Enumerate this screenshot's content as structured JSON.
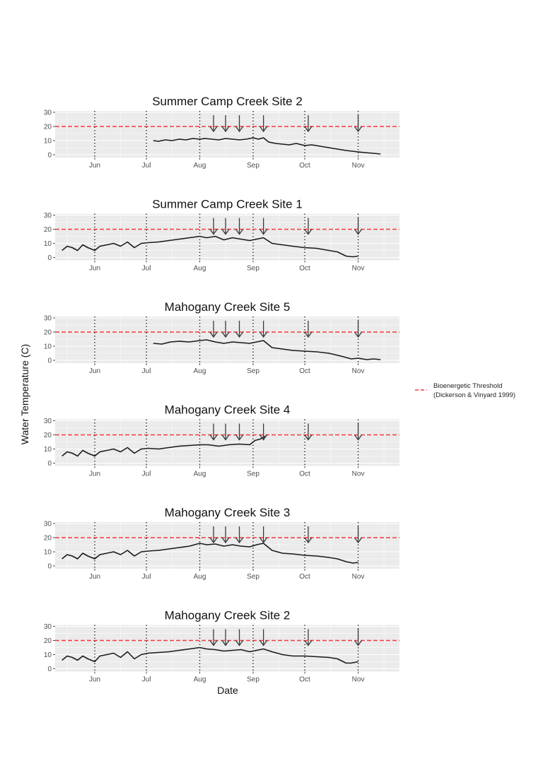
{
  "ylabel": "Water Temperature (C)",
  "xlabel": "Date",
  "legend": {
    "label_line1": "Bioenergetic Threshold",
    "label_line2": "(Dickerson & Vinyard 1999)",
    "color": "#f8393e"
  },
  "colors": {
    "panel_bg": "#ebebeb",
    "grid": "#ffffff",
    "line": "#1a1a1a",
    "threshold": "#f8393e",
    "arrow": "#3a3a3a",
    "tick": "#4d4d4d"
  },
  "x_ticks": [
    "Jun",
    "Jul",
    "Aug",
    "Sep",
    "Oct",
    "Nov"
  ],
  "y_ticks": [
    "0",
    "10",
    "20",
    "30"
  ],
  "chart_data": [
    {
      "type": "line",
      "title": "Summer Camp Creek Site 2",
      "xlim": [
        "2016-05-09",
        "2016-11-25"
      ],
      "ylim": [
        -2,
        31
      ],
      "threshold": 20,
      "vlines": [
        "2016-06-01",
        "2016-07-01",
        "2016-08-01",
        "2016-09-01",
        "2016-10-01",
        "2016-11-01"
      ],
      "arrows": [
        "2016-08-09",
        "2016-08-16",
        "2016-08-24",
        "2016-09-07",
        "2016-10-03",
        "2016-11-01"
      ],
      "series": [
        {
          "x": [
            "2016-07-05",
            "2016-07-08",
            "2016-07-12",
            "2016-07-16",
            "2016-07-20",
            "2016-07-24",
            "2016-07-28",
            "2016-08-01",
            "2016-08-04",
            "2016-08-08",
            "2016-08-12",
            "2016-08-16",
            "2016-08-20",
            "2016-08-24",
            "2016-08-28",
            "2016-09-01",
            "2016-09-04",
            "2016-09-07",
            "2016-09-10",
            "2016-09-14",
            "2016-09-18",
            "2016-09-22",
            "2016-09-26",
            "2016-10-01",
            "2016-10-05",
            "2016-10-10",
            "2016-10-15",
            "2016-10-20",
            "2016-10-25",
            "2016-11-01",
            "2016-11-05",
            "2016-11-10",
            "2016-11-14"
          ],
          "y": [
            10,
            9.5,
            10.5,
            10,
            11,
            10.5,
            11.5,
            11,
            11.5,
            11,
            10.5,
            11.5,
            11,
            10.5,
            11,
            12,
            11,
            12,
            9,
            8,
            7.5,
            7,
            8,
            6.5,
            7,
            6,
            5,
            4,
            3,
            2,
            1.5,
            1,
            0.5
          ]
        }
      ]
    },
    {
      "type": "line",
      "title": "Summer Camp Creek Site 1",
      "xlim": [
        "2016-05-09",
        "2016-11-25"
      ],
      "ylim": [
        -2,
        31
      ],
      "threshold": 20,
      "vlines": [
        "2016-06-01",
        "2016-07-01",
        "2016-08-01",
        "2016-09-01",
        "2016-10-01",
        "2016-11-01"
      ],
      "arrows": [
        "2016-08-09",
        "2016-08-16",
        "2016-08-24",
        "2016-09-07",
        "2016-10-03",
        "2016-11-01"
      ],
      "series": [
        {
          "x": [
            "2016-05-13",
            "2016-05-16",
            "2016-05-19",
            "2016-05-22",
            "2016-05-25",
            "2016-05-28",
            "2016-06-01",
            "2016-06-04",
            "2016-06-08",
            "2016-06-12",
            "2016-06-16",
            "2016-06-20",
            "2016-06-24",
            "2016-06-28",
            "2016-07-02",
            "2016-07-08",
            "2016-07-14",
            "2016-07-20",
            "2016-07-26",
            "2016-08-01",
            "2016-08-05",
            "2016-08-10",
            "2016-08-15",
            "2016-08-20",
            "2016-08-25",
            "2016-08-30",
            "2016-09-03",
            "2016-09-07",
            "2016-09-12",
            "2016-09-18",
            "2016-09-24",
            "2016-10-01",
            "2016-10-08",
            "2016-10-15",
            "2016-10-20",
            "2016-10-25",
            "2016-10-29",
            "2016-11-01"
          ],
          "y": [
            5,
            8,
            7,
            5,
            9,
            7,
            5,
            8,
            9,
            10,
            8,
            11,
            7,
            10,
            10.5,
            11,
            12,
            13,
            14,
            15,
            14,
            15,
            12.5,
            14,
            13,
            12,
            13,
            14,
            10,
            9,
            8,
            7,
            6.5,
            5,
            4,
            1,
            0.5,
            1
          ]
        }
      ]
    },
    {
      "type": "line",
      "title": "Mahogany Creek Site 5",
      "xlim": [
        "2016-05-09",
        "2016-11-25"
      ],
      "ylim": [
        -2,
        31
      ],
      "threshold": 20,
      "vlines": [
        "2016-06-01",
        "2016-07-01",
        "2016-08-01",
        "2016-09-01",
        "2016-10-01",
        "2016-11-01"
      ],
      "arrows": [
        "2016-08-09",
        "2016-08-16",
        "2016-08-24",
        "2016-09-07",
        "2016-10-03",
        "2016-11-01"
      ],
      "series": [
        {
          "x": [
            "2016-07-05",
            "2016-07-10",
            "2016-07-15",
            "2016-07-20",
            "2016-07-26",
            "2016-08-01",
            "2016-08-05",
            "2016-08-10",
            "2016-08-15",
            "2016-08-20",
            "2016-08-25",
            "2016-08-30",
            "2016-09-03",
            "2016-09-07",
            "2016-09-12",
            "2016-09-18",
            "2016-09-24",
            "2016-10-01",
            "2016-10-08",
            "2016-10-15",
            "2016-10-22",
            "2016-10-28",
            "2016-11-01",
            "2016-11-06",
            "2016-11-10",
            "2016-11-14"
          ],
          "y": [
            12,
            11.5,
            13,
            13.5,
            13,
            14,
            14.5,
            13,
            12,
            13,
            12.5,
            12,
            13,
            14,
            9,
            8,
            7,
            6.5,
            6,
            5,
            3,
            1,
            1.5,
            0.5,
            1,
            0.5
          ]
        }
      ]
    },
    {
      "type": "line",
      "title": "Mahogany Creek Site 4",
      "xlim": [
        "2016-05-09",
        "2016-11-25"
      ],
      "ylim": [
        -2,
        31
      ],
      "threshold": 20,
      "vlines": [
        "2016-06-01",
        "2016-07-01",
        "2016-08-01",
        "2016-09-01",
        "2016-10-01",
        "2016-11-01"
      ],
      "arrows": [
        "2016-08-09",
        "2016-08-16",
        "2016-08-24",
        "2016-09-07",
        "2016-10-03",
        "2016-11-01"
      ],
      "series": [
        {
          "x": [
            "2016-05-13",
            "2016-05-16",
            "2016-05-19",
            "2016-05-22",
            "2016-05-25",
            "2016-05-28",
            "2016-06-01",
            "2016-06-04",
            "2016-06-08",
            "2016-06-12",
            "2016-06-16",
            "2016-06-20",
            "2016-06-24",
            "2016-06-28",
            "2016-07-02",
            "2016-07-08",
            "2016-07-14",
            "2016-07-20",
            "2016-07-26",
            "2016-08-01",
            "2016-08-06",
            "2016-08-12",
            "2016-08-18",
            "2016-08-24",
            "2016-08-30",
            "2016-09-02",
            "2016-09-05",
            "2016-09-08"
          ],
          "y": [
            5,
            8,
            7,
            5,
            9,
            7,
            5,
            8,
            9,
            10,
            8,
            11,
            7,
            10,
            10.5,
            10,
            11,
            12,
            12.5,
            13,
            13,
            12,
            13,
            13.5,
            13,
            16,
            17,
            19
          ]
        }
      ]
    },
    {
      "type": "line",
      "title": "Mahogany Creek Site 3",
      "xlim": [
        "2016-05-09",
        "2016-11-25"
      ],
      "ylim": [
        -2,
        31
      ],
      "threshold": 20,
      "vlines": [
        "2016-06-01",
        "2016-07-01",
        "2016-08-01",
        "2016-09-01",
        "2016-10-01",
        "2016-11-01"
      ],
      "arrows": [
        "2016-08-09",
        "2016-08-16",
        "2016-08-24",
        "2016-09-07",
        "2016-10-03",
        "2016-11-01"
      ],
      "series": [
        {
          "x": [
            "2016-05-13",
            "2016-05-16",
            "2016-05-19",
            "2016-05-22",
            "2016-05-25",
            "2016-05-28",
            "2016-06-01",
            "2016-06-04",
            "2016-06-08",
            "2016-06-12",
            "2016-06-16",
            "2016-06-20",
            "2016-06-24",
            "2016-06-28",
            "2016-07-02",
            "2016-07-08",
            "2016-07-14",
            "2016-07-20",
            "2016-07-26",
            "2016-08-01",
            "2016-08-05",
            "2016-08-10",
            "2016-08-15",
            "2016-08-20",
            "2016-08-25",
            "2016-08-30",
            "2016-09-03",
            "2016-09-07",
            "2016-09-12",
            "2016-09-18",
            "2016-09-24",
            "2016-10-01",
            "2016-10-08",
            "2016-10-15",
            "2016-10-20",
            "2016-10-25",
            "2016-10-29",
            "2016-11-01"
          ],
          "y": [
            5,
            8,
            7,
            5,
            9,
            7,
            5,
            8,
            9,
            10,
            8,
            11,
            7,
            10,
            10.5,
            11,
            12,
            13,
            14,
            16,
            15,
            15.5,
            14,
            15,
            14,
            13.5,
            15,
            16,
            11,
            9,
            8.5,
            7.5,
            7,
            6,
            5,
            3,
            2,
            2.5
          ]
        }
      ]
    },
    {
      "type": "line",
      "title": "Mahogany Creek Site 2",
      "xlim": [
        "2016-05-09",
        "2016-11-25"
      ],
      "ylim": [
        -2,
        31
      ],
      "threshold": 20,
      "vlines": [
        "2016-06-01",
        "2016-07-01",
        "2016-08-01",
        "2016-09-01",
        "2016-10-01",
        "2016-11-01"
      ],
      "arrows": [
        "2016-08-09",
        "2016-08-16",
        "2016-08-24",
        "2016-09-07",
        "2016-10-03",
        "2016-11-01"
      ],
      "series": [
        {
          "x": [
            "2016-05-13",
            "2016-05-16",
            "2016-05-19",
            "2016-05-22",
            "2016-05-25",
            "2016-05-28",
            "2016-06-01",
            "2016-06-04",
            "2016-06-08",
            "2016-06-12",
            "2016-06-16",
            "2016-06-20",
            "2016-06-24",
            "2016-06-28",
            "2016-07-02",
            "2016-07-08",
            "2016-07-14",
            "2016-07-20",
            "2016-07-26",
            "2016-08-01",
            "2016-08-05",
            "2016-08-10",
            "2016-08-15",
            "2016-08-20",
            "2016-08-25",
            "2016-08-30",
            "2016-09-03",
            "2016-09-07",
            "2016-09-12",
            "2016-09-18",
            "2016-09-24",
            "2016-10-01",
            "2016-10-08",
            "2016-10-15",
            "2016-10-20",
            "2016-10-25",
            "2016-10-28",
            "2016-11-01"
          ],
          "y": [
            6,
            9,
            8,
            6,
            9,
            7,
            5,
            9,
            10,
            11,
            8,
            12,
            7,
            10,
            11,
            11.5,
            12,
            13,
            14,
            15,
            14,
            13.5,
            12.5,
            13,
            13.5,
            12,
            13,
            14,
            12,
            10,
            9,
            9,
            8.5,
            8,
            7,
            4,
            4,
            5
          ]
        }
      ]
    }
  ]
}
